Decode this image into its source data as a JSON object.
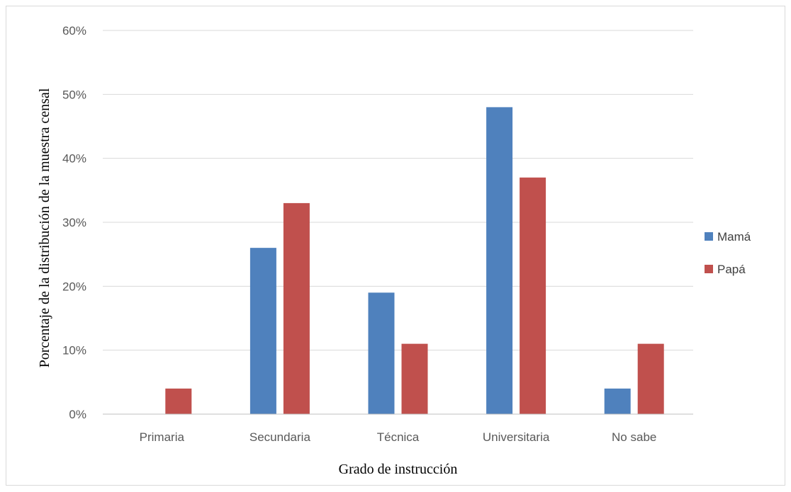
{
  "chart_data": {
    "type": "bar",
    "xlabel": "Grado de instrucción",
    "ylabel": "Porcentaje de la distribución de la muestra censal",
    "categories": [
      "Primaria",
      "Secundaria",
      "Técnica",
      "Universitaria",
      "No sabe"
    ],
    "series": [
      {
        "name": "Mamá",
        "color": "#4f81bd",
        "values": [
          0,
          26,
          19,
          48,
          4
        ]
      },
      {
        "name": "Papá",
        "color": "#c0504d",
        "values": [
          4,
          33,
          11,
          37,
          11
        ]
      }
    ],
    "ylim": [
      0,
      60
    ],
    "yticks": [
      "0%",
      "10%",
      "20%",
      "30%",
      "40%",
      "50%",
      "60%"
    ],
    "grid": true,
    "legend_position": "right"
  }
}
